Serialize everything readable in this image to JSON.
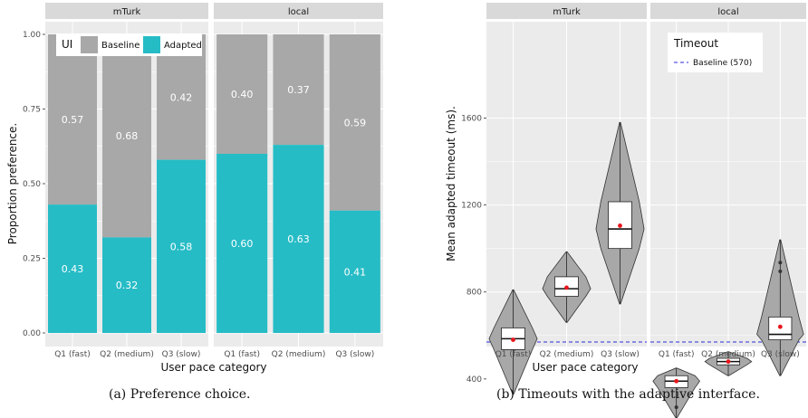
{
  "chart_data": [
    {
      "type": "bar",
      "stacked": true,
      "facets": [
        "mTurk",
        "local"
      ],
      "categories": [
        "Q1 (fast)",
        "Q2 (medium)",
        "Q3 (slow)"
      ],
      "series": [
        {
          "name": "Adapted",
          "color": "#26bcc6",
          "values": {
            "mTurk": [
              0.43,
              0.32,
              0.58
            ],
            "local": [
              0.6,
              0.63,
              0.41
            ]
          }
        },
        {
          "name": "Baseline",
          "color": "#a8a8a8",
          "values": {
            "mTurk": [
              0.57,
              0.68,
              0.42
            ],
            "local": [
              0.4,
              0.37,
              0.59
            ]
          }
        }
      ],
      "labels": {
        "adapted": {
          "mTurk": [
            "0.43",
            "0.32",
            "0.58"
          ],
          "local": [
            "0.60",
            "0.63",
            "0.41"
          ]
        },
        "baseline": {
          "mTurk": [
            "0.57",
            "0.68",
            "0.42"
          ],
          "local": [
            "0.40",
            "0.37",
            "0.59"
          ]
        }
      },
      "xlabel": "User pace category",
      "ylabel": "Proportion preference.",
      "ylim": [
        0,
        1
      ],
      "yticks": [
        "0.00",
        "0.25",
        "0.50",
        "0.75",
        "1.00"
      ],
      "legend": {
        "title": "UI",
        "entries": [
          "Baseline",
          "Adapted"
        ],
        "placement": "top-left"
      },
      "caption": "(a) Preference choice."
    },
    {
      "type": "violin",
      "facets": [
        "mTurk",
        "local"
      ],
      "categories": [
        "Q1 (fast)",
        "Q2 (medium)",
        "Q3 (slow)"
      ],
      "data": {
        "mTurk": [
          {
            "min": 330,
            "q1": 535,
            "median": 585,
            "q3": 635,
            "max": 810,
            "mean": 580
          },
          {
            "min": 660,
            "q1": 780,
            "median": 815,
            "q3": 870,
            "max": 985,
            "mean": 820
          },
          {
            "min": 745,
            "q1": 1000,
            "median": 1090,
            "q3": 1215,
            "max": 1580,
            "mean": 1105
          }
        ],
        "local": [
          {
            "min": 220,
            "q1": 360,
            "median": 390,
            "q3": 415,
            "max": 450,
            "mean": 390,
            "outliers": [
              270
            ]
          },
          {
            "min": 415,
            "q1": 465,
            "median": 480,
            "q3": 495,
            "max": 525,
            "mean": 480
          },
          {
            "min": 415,
            "q1": 580,
            "median": 605,
            "q3": 685,
            "max": 1040,
            "mean": 640,
            "outliers": [
              895,
              935
            ]
          }
        ]
      },
      "hline": {
        "value": 570,
        "label": "Baseline (570)"
      },
      "xlabel": "User pace category",
      "ylabel": "Mean adapted timeout (ms).",
      "ylim": [
        190,
        1660
      ],
      "yticks": [
        "400",
        "800",
        "1200",
        "1600"
      ],
      "legend": {
        "title": "Timeout",
        "placement": "top-right"
      },
      "caption": "(b) Timeouts with the adaptive interface."
    }
  ]
}
